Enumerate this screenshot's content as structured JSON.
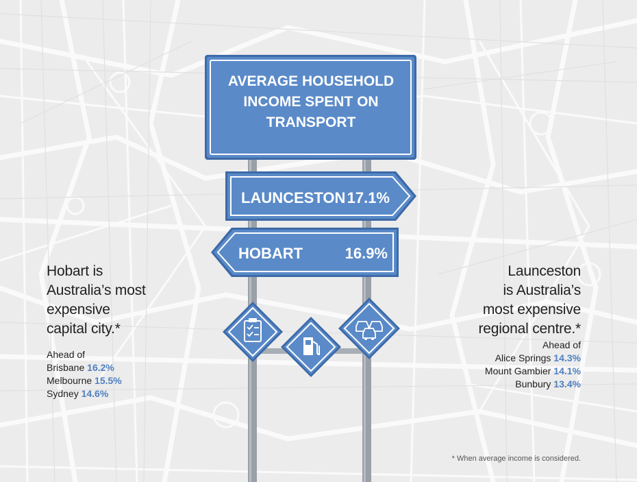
{
  "main_sign": {
    "lines": [
      "AVERAGE HOUSEHOLD",
      "INCOME SPENT ON",
      "TRANSPORT"
    ]
  },
  "signs": [
    {
      "city": "LAUNCESTON",
      "value": "17.1%"
    },
    {
      "city": "HOBART",
      "value": "16.9%"
    }
  ],
  "icons": [
    "checklist-icon",
    "fuel-pump-icon",
    "traffic-cars-icon"
  ],
  "left_panel": {
    "headline": [
      "Hobart is",
      "Australia’s most",
      "expensive",
      "capital city.*"
    ],
    "ahead_title": "Ahead of",
    "items": [
      {
        "city": "Brisbane",
        "value": "16.2%"
      },
      {
        "city": "Melbourne",
        "value": "15.5%"
      },
      {
        "city": "Sydney",
        "value": "14.6%"
      }
    ]
  },
  "right_panel": {
    "headline": [
      "Launceston",
      "is Australia’s",
      "most expensive",
      "regional centre.*"
    ],
    "ahead_title": "Ahead of",
    "items": [
      {
        "city": "Alice Springs",
        "value": "14.3%"
      },
      {
        "city": "Mount Gambier",
        "value": "14.1%"
      },
      {
        "city": "Bunbury",
        "value": "13.4%"
      }
    ]
  },
  "footnote": "* When average income is considered.",
  "colors": {
    "sign_blue": "#5a8ac8",
    "sign_border": "#ffffff",
    "sign_outline": "#3d6aa8",
    "pole_gray": "#9aa0a8",
    "accent_text": "#4f7fc0",
    "map_background": "#ececec",
    "map_roads": "#ffffff"
  }
}
